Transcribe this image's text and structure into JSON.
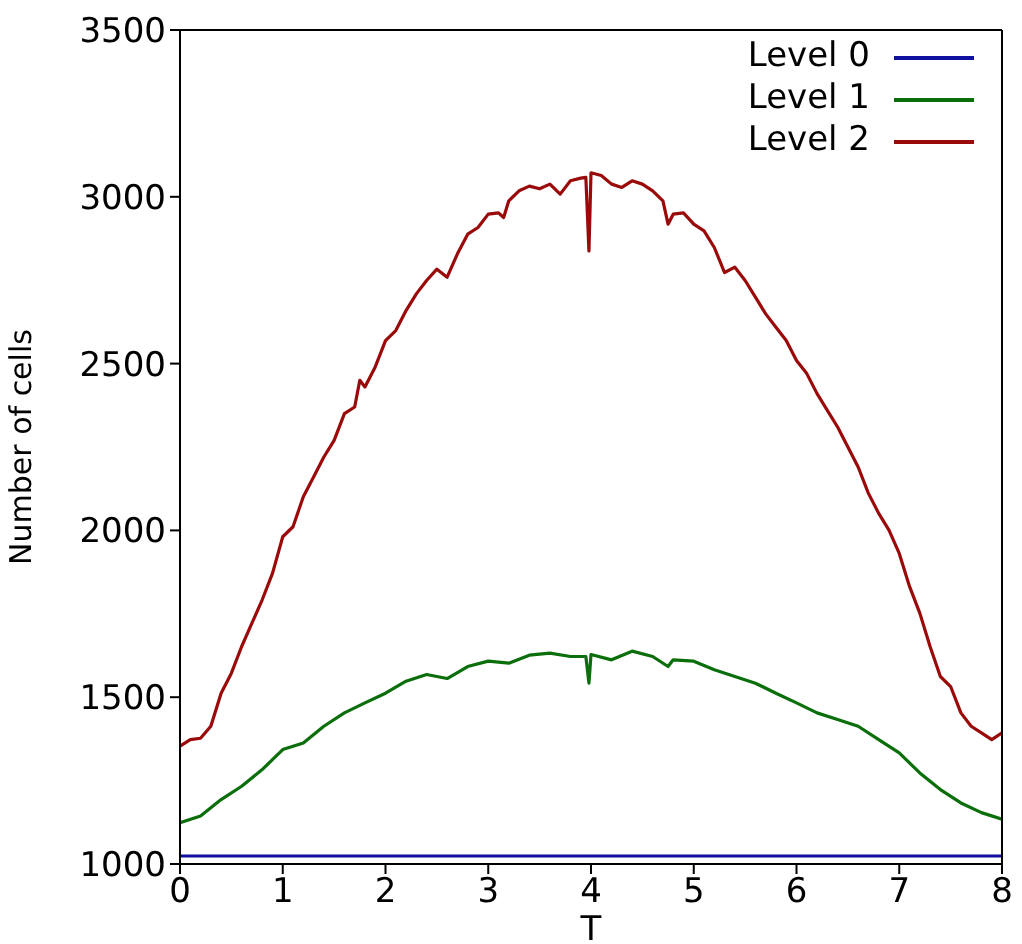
{
  "chart_data": {
    "type": "line",
    "xlabel": "T",
    "ylabel": "Number of cells",
    "xlim": [
      0,
      8
    ],
    "xticks": [
      0,
      1,
      2,
      3,
      4,
      5,
      6,
      7,
      8
    ],
    "ylim": [
      1000,
      3500
    ],
    "yticks": [
      1000,
      1500,
      2000,
      2500,
      3000,
      3500
    ],
    "grid": false,
    "legend": "top right",
    "marker": "none",
    "line_style": "solid",
    "series": [
      {
        "name": "Level 0",
        "color": "#1010a0",
        "x": [
          0,
          8
        ],
        "values": [
          1024,
          1024
        ]
      },
      {
        "name": "Level 1",
        "color": "#0a6e0a",
        "x": [
          0,
          0.2,
          0.4,
          0.6,
          0.8,
          1.0,
          1.2,
          1.4,
          1.6,
          1.8,
          2.0,
          2.2,
          2.4,
          2.6,
          2.8,
          3.0,
          3.2,
          3.4,
          3.6,
          3.8,
          3.95,
          3.98,
          4.0,
          4.2,
          4.4,
          4.6,
          4.75,
          4.8,
          5.0,
          5.2,
          5.4,
          5.6,
          5.8,
          6.0,
          6.2,
          6.4,
          6.6,
          6.8,
          7.0,
          7.2,
          7.4,
          7.6,
          7.8,
          8.0
        ],
        "values": [
          1124,
          1144,
          1193,
          1233,
          1283,
          1343,
          1363,
          1413,
          1453,
          1483,
          1512,
          1548,
          1568,
          1556,
          1592,
          1608,
          1602,
          1626,
          1632,
          1622,
          1622,
          1542,
          1628,
          1612,
          1638,
          1622,
          1592,
          1612,
          1608,
          1582,
          1562,
          1542,
          1512,
          1483,
          1453,
          1433,
          1413,
          1373,
          1333,
          1273,
          1223,
          1183,
          1154,
          1134
        ]
      },
      {
        "name": "Level 2",
        "color": "#9a0a0a",
        "x": [
          0,
          0.1,
          0.2,
          0.3,
          0.4,
          0.5,
          0.6,
          0.7,
          0.8,
          0.9,
          1.0,
          1.1,
          1.2,
          1.3,
          1.4,
          1.5,
          1.6,
          1.7,
          1.75,
          1.8,
          1.9,
          2.0,
          2.1,
          2.2,
          2.3,
          2.4,
          2.5,
          2.6,
          2.7,
          2.8,
          2.9,
          3.0,
          3.1,
          3.15,
          3.2,
          3.3,
          3.4,
          3.5,
          3.6,
          3.7,
          3.8,
          3.9,
          3.95,
          3.98,
          4.0,
          4.1,
          4.2,
          4.3,
          4.4,
          4.5,
          4.6,
          4.7,
          4.75,
          4.8,
          4.9,
          5.0,
          5.1,
          5.2,
          5.3,
          5.4,
          5.5,
          5.6,
          5.7,
          5.8,
          5.9,
          6.0,
          6.1,
          6.2,
          6.3,
          6.4,
          6.5,
          6.6,
          6.7,
          6.8,
          6.9,
          7.0,
          7.1,
          7.2,
          7.3,
          7.4,
          7.5,
          7.6,
          7.7,
          7.8,
          7.9,
          8.0
        ],
        "values": [
          1353,
          1373,
          1377,
          1413,
          1512,
          1572,
          1652,
          1722,
          1792,
          1871,
          1981,
          2011,
          2101,
          2160,
          2220,
          2270,
          2350,
          2370,
          2450,
          2430,
          2490,
          2569,
          2599,
          2659,
          2709,
          2749,
          2783,
          2759,
          2829,
          2888,
          2908,
          2948,
          2952,
          2938,
          2988,
          3018,
          3032,
          3024,
          3038,
          3008,
          3048,
          3056,
          3058,
          2838,
          3072,
          3064,
          3038,
          3028,
          3048,
          3038,
          3018,
          2988,
          2918,
          2948,
          2952,
          2918,
          2898,
          2848,
          2773,
          2789,
          2749,
          2699,
          2649,
          2609,
          2569,
          2509,
          2470,
          2410,
          2360,
          2310,
          2250,
          2190,
          2111,
          2051,
          2001,
          1931,
          1832,
          1752,
          1652,
          1562,
          1532,
          1453,
          1413,
          1393,
          1373,
          1393
        ]
      }
    ]
  }
}
